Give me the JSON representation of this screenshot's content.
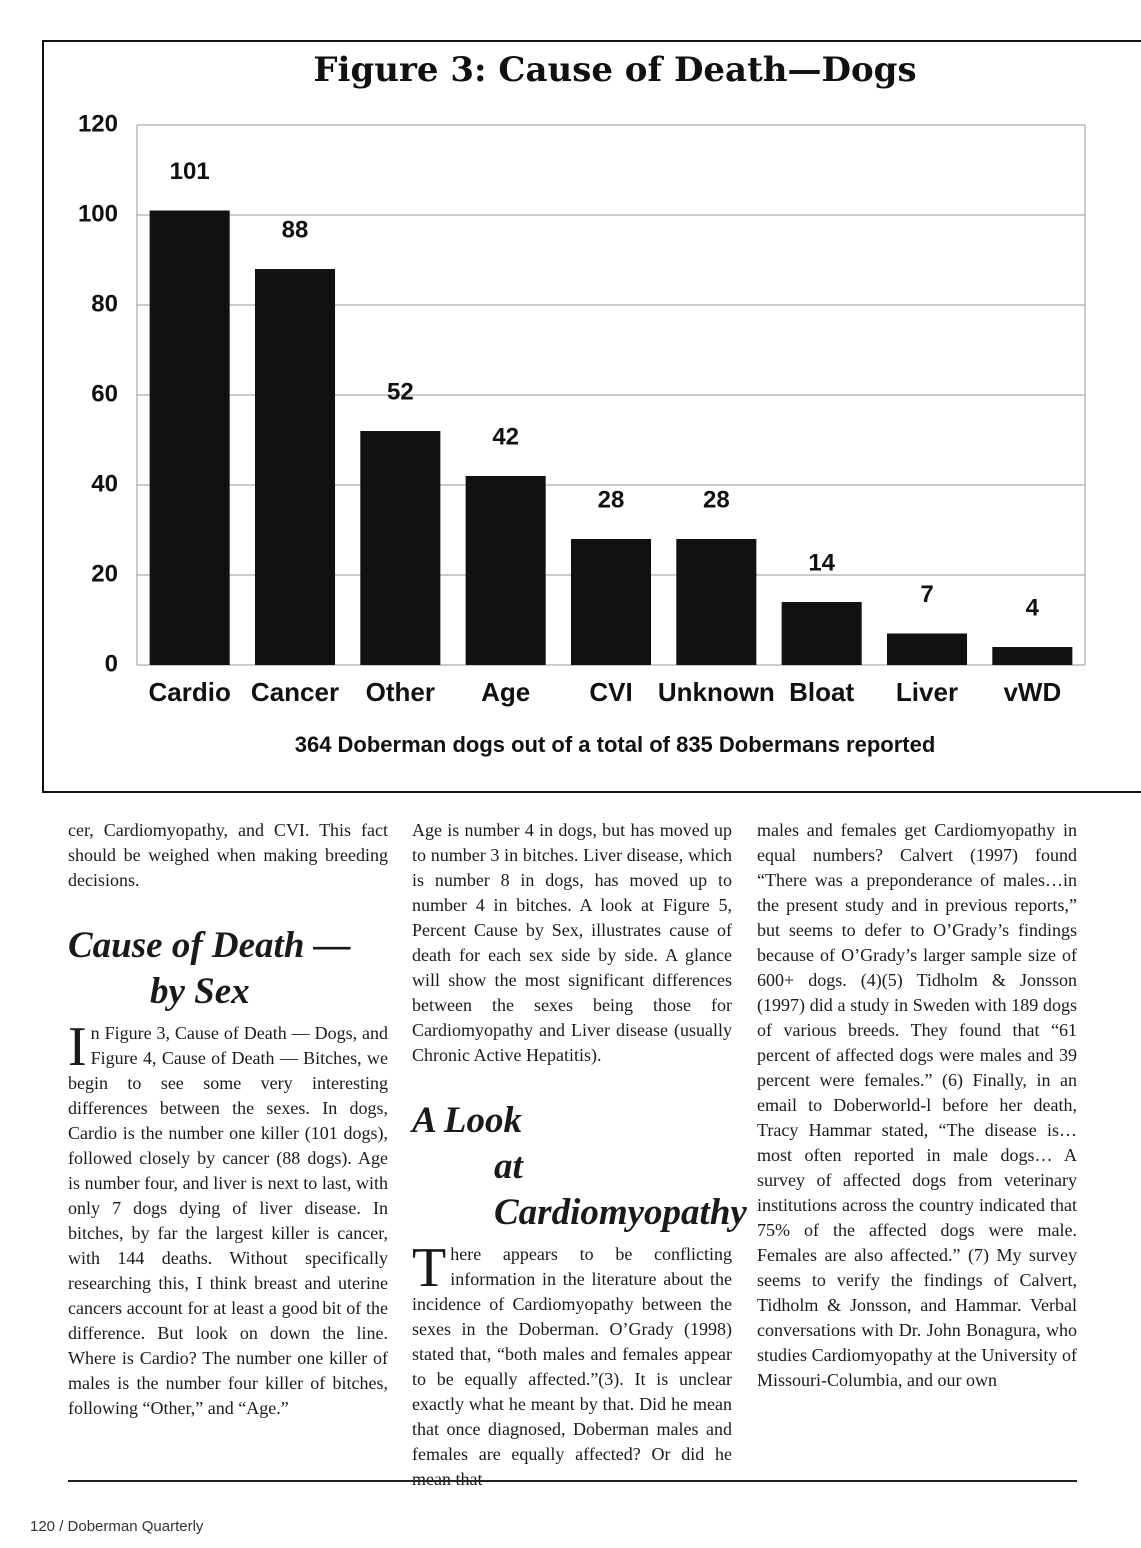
{
  "chart_data": {
    "type": "bar",
    "title": "Figure 3: Cause of Death—Dogs",
    "categories": [
      "Cardio",
      "Cancer",
      "Other",
      "Age",
      "CVI",
      "Unknown",
      "Bloat",
      "Liver",
      "vWD"
    ],
    "values": [
      101,
      88,
      52,
      42,
      28,
      28,
      14,
      7,
      4
    ],
    "color": "#111111",
    "xlabel": "364 Doberman dogs out of a total of 835 Dobermans reported",
    "ylim": [
      0,
      120
    ],
    "yticks": [
      0,
      20,
      40,
      60,
      80,
      100,
      120
    ],
    "grid": true
  },
  "document": {
    "columns": [
      {
        "blocks": [
          {
            "type": "p",
            "text": "cer, Cardiomyopathy, and CVI. This fact should be weighed when making breeding decisions."
          },
          {
            "type": "h",
            "lines": [
              "Cause of Death —",
              "by Sex"
            ]
          },
          {
            "type": "p",
            "dropcap": true,
            "text": "In Figure 3, Cause of Death — Dogs, and Figure 4, Cause of Death — Bitches, we begin to see some very interesting differences between the sexes. In dogs, Cardio is the number one killer (101 dogs), followed closely by cancer (88 dogs). Age is number four, and liver is next to last, with only 7 dogs dying of liver disease. In bitches, by far the largest killer is cancer, with 144 deaths. Without specifically researching this, I think breast and uterine cancers account for at least a good bit of the difference. But look on down the line. Where is Cardio? The number one killer of males is the number four killer of bitches, following “Other,” and “Age.”"
          }
        ]
      },
      {
        "blocks": [
          {
            "type": "p",
            "text": "Age is number 4 in dogs, but has moved up to number 3 in bitches. Liver disease, which is number 8 in dogs, has moved up to number 4 in bitches. A look at Figure 5, Percent Cause by Sex, illustrates cause of death for each sex side by side. A glance will show the most significant differences between the sexes being those for Cardiomyopathy and Liver disease (usually Chronic Active Hepatitis)."
          },
          {
            "type": "h",
            "lines": [
              "A Look",
              "at Cardiomyopathy"
            ]
          },
          {
            "type": "p",
            "dropcap": true,
            "text": "There appears to be conflicting information in the literature about the incidence of Cardiomyopathy between the sexes in the Doberman. O’Grady (1998) stated that, “both males and females appear to be equally affected.”(3). It is unclear exactly what he meant by that. Did he mean that once diagnosed, Doberman males and females are equally affected? Or did he mean that"
          }
        ]
      },
      {
        "blocks": [
          {
            "type": "p",
            "text": "males and females get Cardiomyopathy in equal numbers? Calvert (1997) found “There was a preponderance of males…in the present study and in previous reports,” but seems to defer to O’Grady’s findings because of O’Grady’s larger sample size of 600+ dogs. (4)(5) Tidholm & Jonsson (1997) did a study in Sweden with 189 dogs of various breeds. They found that “61 percent of affected dogs were males and 39 percent were females.” (6) Finally, in an email to Doberworld-l before her death, Tracy Hammar stated, “The disease is… most often reported in male dogs… A survey of affected dogs from veterinary institutions across the country indicated that 75% of the affected dogs were male. Females are also affected.” (7) My survey seems to verify the findings of Calvert, Tidholm & Jonsson, and Hammar. Verbal conversations with Dr. John Bonagura, who studies Cardiomyopathy at the University of Missouri-Columbia, and our own"
          }
        ]
      }
    ],
    "footer": "120 / Doberman Quarterly"
  }
}
